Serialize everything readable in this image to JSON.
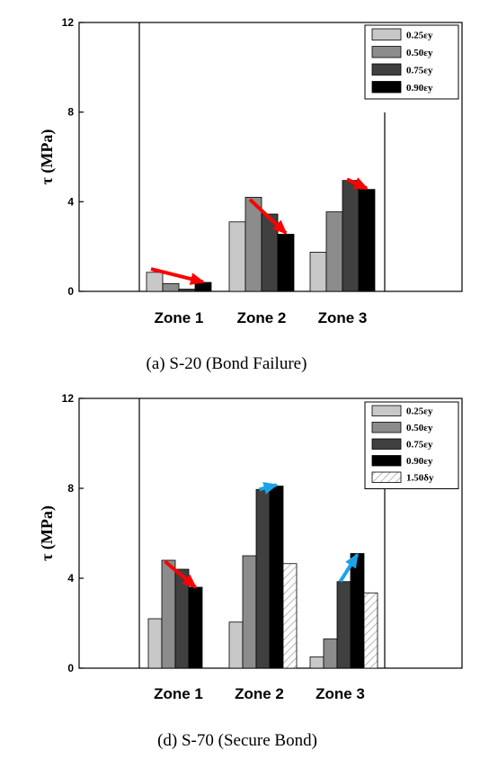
{
  "chart_data": [
    {
      "type": "bar",
      "caption": "(a) S-20 (Bond Failure)",
      "ylabel": "τ (MPa)",
      "ylim": [
        0,
        12
      ],
      "yticks": [
        "0",
        "4",
        "8",
        "12"
      ],
      "categories": [
        "Zone 1",
        "Zone 2",
        "Zone 3"
      ],
      "series": [
        {
          "name": "0.25εy",
          "values": [
            0.85,
            3.1,
            1.75
          ],
          "color": "#c8c8c8"
        },
        {
          "name": "0.50εy",
          "values": [
            0.35,
            4.2,
            3.55
          ],
          "color": "#8c8c8c"
        },
        {
          "name": "0.75εy",
          "values": [
            0.1,
            3.45,
            4.95
          ],
          "color": "#404040"
        },
        {
          "name": "0.90εy",
          "values": [
            0.4,
            2.55,
            4.55
          ],
          "color": "#000000"
        }
      ],
      "legend": "top-right",
      "arrows": [
        {
          "color": "#ff0000",
          "from": {
            "cat": 0,
            "series": 0,
            "value": 1.0
          },
          "to": {
            "cat": 0,
            "series": 3,
            "value": 0.42
          }
        },
        {
          "color": "#ff0000",
          "from": {
            "cat": 1,
            "series": 1,
            "value": 4.1
          },
          "to": {
            "cat": 1,
            "series": 3,
            "value": 2.6
          }
        },
        {
          "color": "#ff0000",
          "from": {
            "cat": 2,
            "series": 2,
            "value": 5.0
          },
          "to": {
            "cat": 2,
            "series": 3,
            "value": 4.6
          }
        }
      ]
    },
    {
      "type": "bar",
      "caption": "(d) S-70 (Secure Bond)",
      "ylabel": "τ (MPa)",
      "ylim": [
        0,
        12
      ],
      "yticks": [
        "0",
        "4",
        "8",
        "12"
      ],
      "categories": [
        "Zone 1",
        "Zone 2",
        "Zone 3"
      ],
      "series": [
        {
          "name": "0.25εy",
          "values": [
            2.2,
            2.05,
            0.5
          ],
          "color": "#c8c8c8"
        },
        {
          "name": "0.50εy",
          "values": [
            4.8,
            5.0,
            1.3
          ],
          "color": "#8c8c8c"
        },
        {
          "name": "0.75εy",
          "values": [
            4.4,
            7.95,
            3.85
          ],
          "color": "#404040"
        },
        {
          "name": "0.90εy",
          "values": [
            3.6,
            8.1,
            5.1
          ],
          "color": "#000000"
        },
        {
          "name": "1.50δy",
          "values": [
            null,
            4.65,
            3.35
          ],
          "color": "hatch"
        }
      ],
      "legend": "top-right",
      "arrows": [
        {
          "color": "#ff0000",
          "from": {
            "cat": 0,
            "series": 1,
            "value": 4.75
          },
          "to": {
            "cat": 0,
            "series": 3,
            "value": 3.6
          }
        },
        {
          "color": "#1aa3e8",
          "from": {
            "cat": 1,
            "series": 2,
            "value": 7.95
          },
          "to": {
            "cat": 1,
            "series": 3,
            "value": 8.15
          }
        },
        {
          "color": "#1aa3e8",
          "from": {
            "cat": 2,
            "series": 2,
            "value": 3.85
          },
          "to": {
            "cat": 2,
            "series": 3,
            "value": 5.05
          }
        }
      ]
    }
  ]
}
